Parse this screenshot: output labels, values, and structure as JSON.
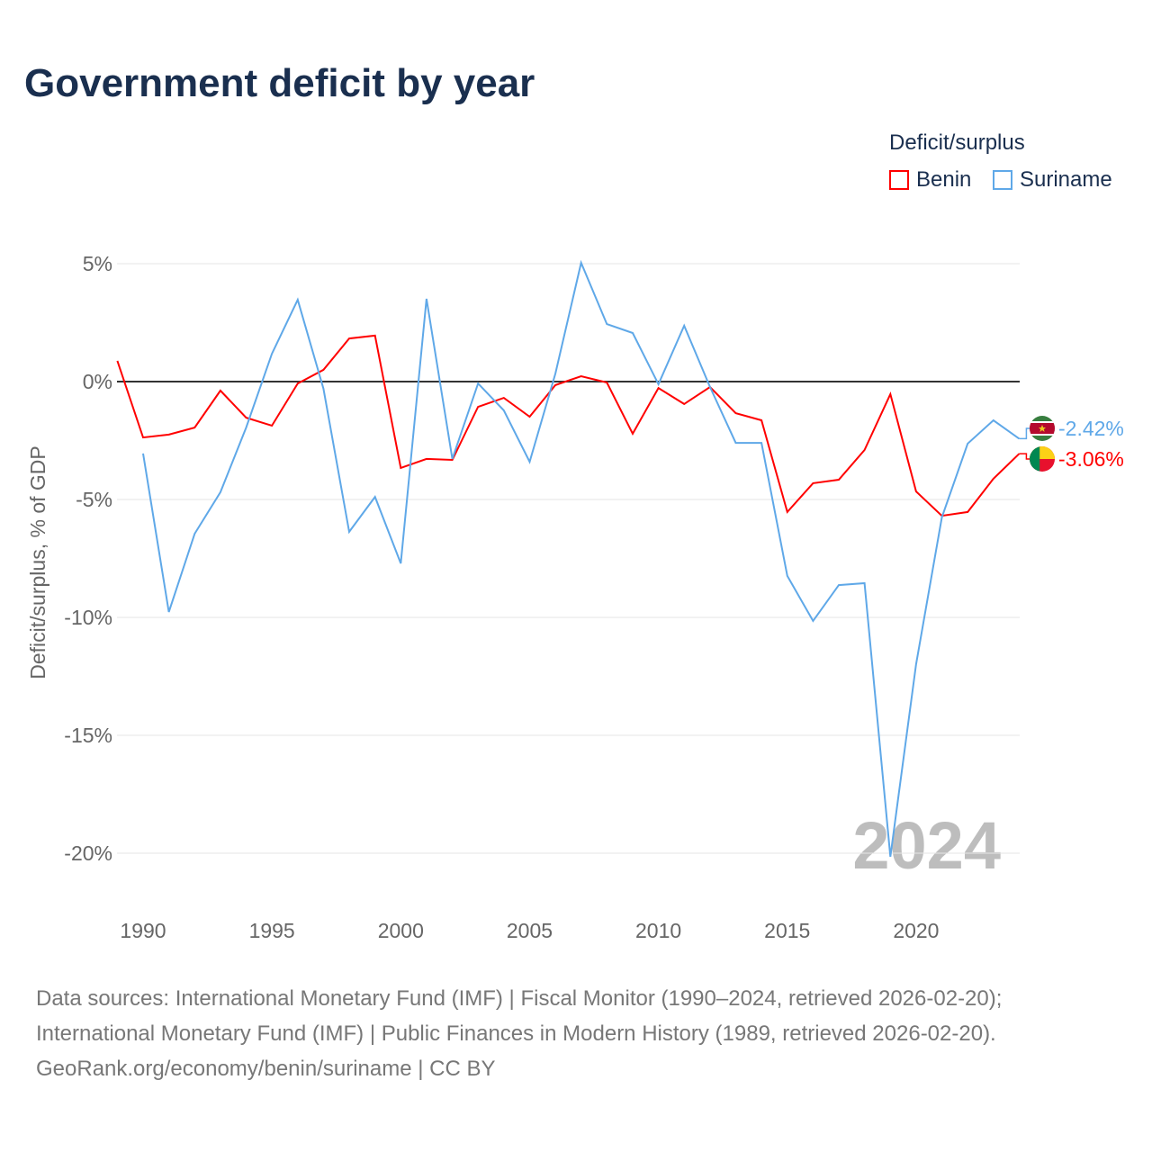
{
  "title": "Government deficit by year",
  "legend": {
    "title": "Deficit/surplus",
    "items": [
      {
        "name": "Benin",
        "color": "#ff0000"
      },
      {
        "name": "Suriname",
        "color": "#5fa8e8"
      }
    ]
  },
  "overlay_year": "2024",
  "footer": [
    "Data sources: International Monetary Fund (IMF) | Fiscal Monitor (1990–2024, retrieved 2026-02-20);",
    "International Monetary Fund (IMF) | Public Finances in Modern History (1989, retrieved 2026-02-20).",
    "GeoRank.org/economy/benin/suriname | CC BY"
  ],
  "chart_data": {
    "type": "line",
    "title": "Government deficit by year",
    "xlabel": "",
    "ylabel": "Deficit/surplus, % of GDP",
    "xlim": [
      1989,
      2024
    ],
    "ylim": [
      -21,
      5
    ],
    "x_ticks": [
      1990,
      1995,
      2000,
      2005,
      2010,
      2015,
      2020
    ],
    "y_ticks": [
      5,
      0,
      -5,
      -10,
      -15,
      -20
    ],
    "y_tick_labels": [
      "5%",
      "0%",
      "-5%",
      "-10%",
      "-15%",
      "-20%"
    ],
    "grid": true,
    "legend_position": "top-right",
    "series": [
      {
        "name": "Benin",
        "color": "#ff0000",
        "end_label": "-3.06%",
        "start_year": 1989,
        "values": [
          0.88,
          -2.37,
          -2.25,
          -1.95,
          -0.38,
          -1.53,
          -1.87,
          -0.08,
          0.5,
          1.83,
          1.95,
          -3.66,
          -3.28,
          -3.32,
          -1.07,
          -0.69,
          -1.49,
          -0.15,
          0.23,
          -0.04,
          -2.21,
          -0.27,
          -0.95,
          -0.23,
          -1.34,
          -1.64,
          -5.53,
          -4.31,
          -4.16,
          -2.9,
          -0.53,
          -4.66,
          -5.69,
          -5.53,
          -4.12,
          -3.06
        ]
      },
      {
        "name": "Suriname",
        "color": "#5fa8e8",
        "end_label": "-2.42%",
        "start_year": 1990,
        "values": [
          -3.05,
          -9.77,
          -6.45,
          -4.69,
          -1.95,
          1.18,
          3.47,
          -0.3,
          -6.37,
          -4.89,
          -7.71,
          3.51,
          -3.28,
          -0.08,
          -1.22,
          -3.4,
          0.34,
          5.04,
          2.44,
          2.06,
          -0.11,
          2.37,
          -0.23,
          -2.6,
          -2.6,
          -8.24,
          -10.15,
          -8.63,
          -8.55,
          -20.15,
          -11.98,
          -5.76,
          -2.63,
          -1.64,
          -2.42
        ]
      }
    ]
  }
}
